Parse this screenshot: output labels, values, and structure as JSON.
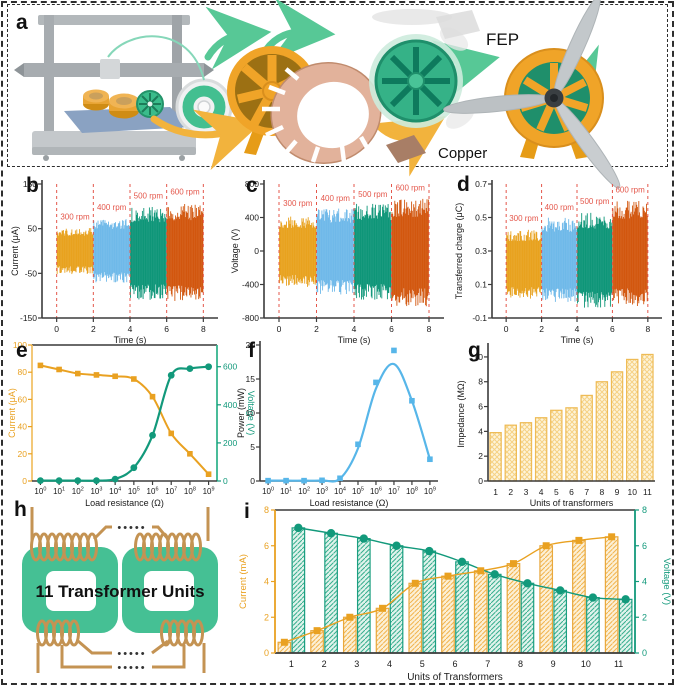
{
  "panels": {
    "a": {
      "letter": "a",
      "fep_label": "FEP",
      "copper_label": "Copper"
    },
    "b": {
      "letter": "b"
    },
    "c": {
      "letter": "c"
    },
    "d": {
      "letter": "d"
    },
    "e": {
      "letter": "e"
    },
    "f": {
      "letter": "f"
    },
    "g": {
      "letter": "g"
    },
    "h": {
      "letter": "h",
      "title": "11 Transformer Units",
      "dots": "•••••"
    },
    "i": {
      "letter": "i"
    }
  },
  "colors": {
    "rpm300_orange": "#e8a21f",
    "rpm400_blue": "#6fb9e9",
    "rpm500_green": "#0e9678",
    "rpm600_dark_orange": "#d2570f",
    "red_annotation": "#e4574b",
    "axis_dark": "#3b3b3b",
    "teal_green": "#12997b",
    "power_blue": "#57b6e9",
    "bar_yellow": "#e9b44a"
  },
  "chart_data": [
    {
      "id": "b",
      "type": "noise_bands",
      "xlabel": "Time (s)",
      "ylabel": "Current (μA)",
      "xlim": [
        -0.8,
        8.8
      ],
      "ylim": [
        -150,
        150
      ],
      "yticks": [
        -150,
        -50,
        50,
        150
      ],
      "xticks": [
        0,
        2,
        4,
        6,
        8
      ],
      "divider_x": [
        0,
        2,
        4,
        6,
        8
      ],
      "divider_color": "#e4574b",
      "bands": [
        {
          "label": "300 rpm",
          "x0": 0,
          "x1": 2,
          "lo": -52,
          "hi": 52,
          "label_y": 70,
          "color": "#e8a21f"
        },
        {
          "label": "400 rpm",
          "x0": 2,
          "x1": 4,
          "lo": -72,
          "hi": 74,
          "label_y": 92,
          "color": "#6fb9e9"
        },
        {
          "label": "500 rpm",
          "x0": 4,
          "x1": 6,
          "lo": -110,
          "hi": 100,
          "label_y": 118,
          "color": "#0e9678"
        },
        {
          "label": "600 rpm",
          "x0": 6,
          "x1": 8,
          "lo": -115,
          "hi": 106,
          "label_y": 127,
          "color": "#d2570f"
        }
      ]
    },
    {
      "id": "c",
      "type": "noise_bands",
      "xlabel": "Time (s)",
      "ylabel": "Voltage (V)",
      "xlim": [
        -0.8,
        8.8
      ],
      "ylim": [
        -800,
        800
      ],
      "yticks": [
        -800,
        -400,
        0,
        400,
        800
      ],
      "xticks": [
        0,
        2,
        4,
        6,
        8
      ],
      "divider_x": [
        0,
        2,
        4,
        6,
        8
      ],
      "divider_color": "#e4574b",
      "bands": [
        {
          "label": "300 rpm",
          "x0": 0,
          "x1": 2,
          "lo": -430,
          "hi": 420,
          "label_y": 540,
          "color": "#e8a21f"
        },
        {
          "label": "400 rpm",
          "x0": 2,
          "x1": 4,
          "lo": -520,
          "hi": 510,
          "label_y": 595,
          "color": "#6fb9e9"
        },
        {
          "label": "500 rpm",
          "x0": 4,
          "x1": 6,
          "lo": -590,
          "hi": 565,
          "label_y": 645,
          "color": "#0e9678"
        },
        {
          "label": "600 rpm",
          "x0": 6,
          "x1": 8,
          "lo": -660,
          "hi": 625,
          "label_y": 725,
          "color": "#d2570f"
        }
      ]
    },
    {
      "id": "d",
      "type": "noise_bands",
      "xlabel": "Time (s)",
      "ylabel": "Transferred charge (μC)",
      "xlim": [
        -0.8,
        8.8
      ],
      "ylim": [
        -0.1,
        0.7
      ],
      "yticks": [
        -0.1,
        0.1,
        0.3,
        0.5,
        0.7
      ],
      "xticks": [
        0,
        2,
        4,
        6,
        8
      ],
      "divider_x": [
        0,
        2,
        4,
        6,
        8
      ],
      "divider_color": "#e4574b",
      "bands": [
        {
          "label": "300 rpm",
          "x0": 0,
          "x1": 2,
          "lo": 0.015,
          "hi": 0.43,
          "label_y": 0.48,
          "color": "#e8a21f"
        },
        {
          "label": "400 rpm",
          "x0": 2,
          "x1": 4,
          "lo": -0.01,
          "hi": 0.5,
          "label_y": 0.545,
          "color": "#6fb9e9"
        },
        {
          "label": "500 rpm",
          "x0": 4,
          "x1": 6,
          "lo": -0.04,
          "hi": 0.53,
          "label_y": 0.58,
          "color": "#0e9678"
        },
        {
          "label": "600 rpm",
          "x0": 6,
          "x1": 8,
          "lo": -0.03,
          "hi": 0.6,
          "label_y": 0.65,
          "color": "#d2570f"
        }
      ]
    },
    {
      "id": "e",
      "type": "dual_line_log",
      "xlabel": "Load resistance (Ω)",
      "ylabel_left": "Current (μA)",
      "ylabel_right": "Voltage (V)",
      "x_exponents": [
        0,
        1,
        2,
        3,
        4,
        5,
        6,
        7,
        8,
        9
      ],
      "ylim_left": [
        0,
        100
      ],
      "yticks_left": [
        0,
        20,
        40,
        60,
        80,
        100
      ],
      "ylim_right": [
        0,
        714
      ],
      "yticks_right": [
        0,
        200,
        400,
        600
      ],
      "current": [
        85,
        82,
        79,
        78,
        77,
        75,
        62,
        35,
        20,
        5
      ],
      "voltage": [
        2,
        2,
        2,
        2,
        10,
        70,
        240,
        555,
        590,
        600
      ],
      "current_color": "#e9a121",
      "voltage_color": "#12997b"
    },
    {
      "id": "f",
      "type": "line_log",
      "xlabel": "Load resistance (Ω)",
      "ylabel": "Power (mW)",
      "x_exponents": [
        0,
        1,
        2,
        3,
        4,
        5,
        6,
        7,
        8,
        9
      ],
      "ylim": [
        0,
        20
      ],
      "yticks": [
        0,
        5,
        10,
        15,
        20
      ],
      "values": [
        0.05,
        0.05,
        0.05,
        0.1,
        0.4,
        5.4,
        14.5,
        19.2,
        11.8,
        3.2
      ],
      "curve": [
        0.05,
        0.05,
        0.05,
        0.08,
        0.35,
        4.8,
        13.6,
        17.2,
        11.8,
        3.2
      ],
      "color": "#57b6e9"
    },
    {
      "id": "g",
      "type": "bar",
      "xlabel": "Units of transformers",
      "ylabel": "Impedance (MΩ)",
      "categories": [
        1,
        2,
        3,
        4,
        5,
        6,
        7,
        8,
        9,
        10,
        11
      ],
      "values": [
        3.9,
        4.5,
        4.7,
        5.1,
        5.7,
        5.9,
        6.9,
        8.0,
        8.8,
        9.8,
        10.2
      ],
      "ylim": [
        0,
        10.8
      ],
      "yticks": [
        0,
        2,
        4,
        6,
        8,
        10
      ],
      "bar_fill": "#fdf4da",
      "bar_hatch": "#f6d285",
      "bar_stroke": "#eebb55"
    },
    {
      "id": "i",
      "type": "dual_bar",
      "xlabel": "Units of Transformers",
      "ylabel_left": "Current (mA)",
      "ylabel_right": "Voltage (V)",
      "categories": [
        1,
        2,
        3,
        4,
        5,
        6,
        7,
        8,
        9,
        10,
        11
      ],
      "current": [
        0.6,
        1.25,
        2.0,
        2.5,
        3.9,
        4.3,
        4.6,
        5.0,
        6.0,
        6.3,
        6.5
      ],
      "voltage": [
        7.0,
        6.7,
        6.4,
        6.0,
        5.7,
        5.1,
        4.4,
        3.9,
        3.5,
        3.1,
        3.0
      ],
      "ylim_left": [
        0,
        8
      ],
      "yticks_left": [
        0,
        2,
        4,
        6,
        8
      ],
      "ylim_right": [
        0,
        8
      ],
      "yticks_right": [
        0,
        2,
        4,
        6,
        8
      ],
      "current_color": "#e9a121",
      "voltage_color": "#12997b",
      "current_bar_fill": "#fcf0d6",
      "current_bar_hatch": "#f2b44d",
      "current_bar_stroke": "#e9a83c",
      "voltage_bar_fill": "#e0f3ec",
      "voltage_bar_hatch": "#35ae8d",
      "voltage_bar_stroke": "#1b9f81"
    }
  ]
}
